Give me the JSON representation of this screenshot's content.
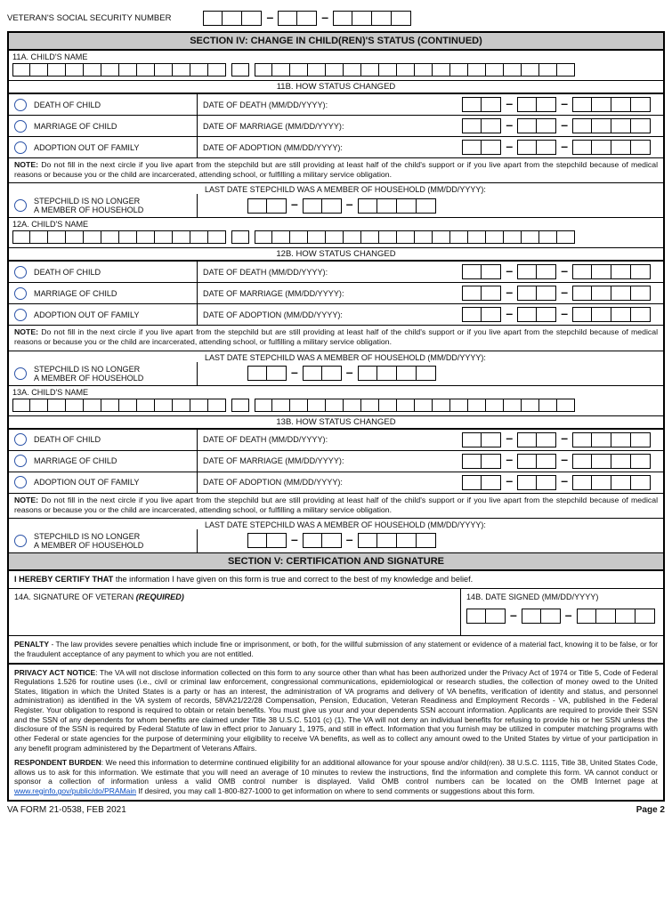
{
  "ssn_label": "VETERAN'S SOCIAL SECURITY NUMBER",
  "section4": "SECTION IV:  CHANGE IN CHILD(REN)'S STATUS (CONTINUED)",
  "section5": "SECTION V:  CERTIFICATION AND SIGNATURE",
  "child_blocks": [
    {
      "name_label": "11A. CHILD'S NAME",
      "hsc": "11B.  HOW STATUS CHANGED"
    },
    {
      "name_label": "12A. CHILD'S NAME",
      "hsc": "12B.  HOW STATUS CHANGED"
    },
    {
      "name_label": "13A.  CHILD'S NAME",
      "hsc": "13B.  HOW STATUS CHANGED"
    }
  ],
  "opts": {
    "death": "DEATH OF CHILD",
    "death_date": "DATE OF DEATH (MM/DD/YYYY):",
    "marr": "MARRIAGE OF CHILD",
    "marr_date": "DATE OF MARRIAGE (MM/DD/YYYY):",
    "adopt": "ADOPTION OUT OF FAMILY",
    "adopt_date": "DATE OF ADOPTION  (MM/DD/YYYY):",
    "step1": "STEPCHILD IS NO LONGER",
    "step2": "A MEMBER OF HOUSEHOLD",
    "lastdate": "LAST DATE STEPCHILD WAS A MEMBER OF HOUSEHOLD (MM/DD/YYYY):"
  },
  "note_bold": "NOTE:",
  "note_text": " Do not fill in the next circle if you live apart from the stepchild but are still providing at least half of the child's support or if you live apart from the stepchild because of medical reasons or because you or the child are incarcerated, attending school, or fulfilling a military service obligation.",
  "certify_bold": "I HEREBY CERTIFY THAT",
  "certify_rest": " the information I have given on this form is true and correct to the best of my knowledge and belief.",
  "sig_label": "14A.  SIGNATURE OF VETERAN  ",
  "required": "(REQUIRED)",
  "date_signed": "14B. DATE SIGNED (MM/DD/YYYY)",
  "penalty_bold": "PENALTY",
  "penalty_rest": " - The law provides severe penalties which include fine or imprisonment, or both, for the willful submission of any statement or evidence of a material fact, knowing it to be false, or for the fraudulent acceptance of any payment to which you are not entitled.",
  "privacy_bold": "PRIVACY ACT NOTICE",
  "privacy_rest": ": The VA will not disclose information collected on this form to any source other than what has been authorized under the Privacy Act of 1974 or Title 5, Code of Federal Regulations 1.526 for routine uses (i.e., civil or criminal law enforcement, congressional communications, epidemiological or research studies, the collection of money owed to the United States, litigation in which the United States is a party or has an interest, the administration of VA programs and delivery of VA benefits, verification of identity and status, and personnel administration) as identified in the VA system of records, 58VA21/22/28 Compensation, Pension, Education, Veteran Readiness and Employment Records - VA, published in the Federal Register. Your obligation to respond is required to obtain or retain benefits. You must give us your and your dependents SSN account information.  Applicants are required to provide their SSN and the SSN of any dependents for whom benefits are claimed under Title 38 U.S.C. 5101 (c) (1). The VA will not deny an individual benefits for refusing to provide his or her SSN unless the disclosure of the SSN is required by Federal Statute of law in effect prior to January 1, 1975, and still in effect. Information that you furnish may be utilized in computer matching programs with other Federal or state agencies for the purpose of determining your eligibility to receive VA benefits, as well as to collect any amount owed to the United States by virtue of your participation in any benefit program administered by the Department of Veterans Affairs.",
  "resp_bold": "RESPONDENT BURDEN",
  "resp_rest1": ": We need this information to determine continued eligibility for an additional allowance for your spouse and/or child(ren). 38 U.S.C. 1115, Title 38, United States Code, allows us to ask for this information. We estimate that you will need an average of 10 minutes to review the instructions, find the information and complete this form. VA cannot conduct or sponsor a collection of information unless a valid OMB control number is displayed. Valid OMB control numbers can be located on the OMB Internet page at ",
  "resp_link": "www.reginfo.gov/public/do/PRAMain",
  "resp_rest2": "   If desired, you may call 1-800-827-1000 to get information on where to send comments or suggestions about this form.",
  "form_id": "VA FORM 21-0538, FEB 2021",
  "page": "Page 2",
  "colors": {
    "header_bg": "#c9c9c9",
    "radio": "#2b53a8",
    "link": "#0b4ec2"
  }
}
